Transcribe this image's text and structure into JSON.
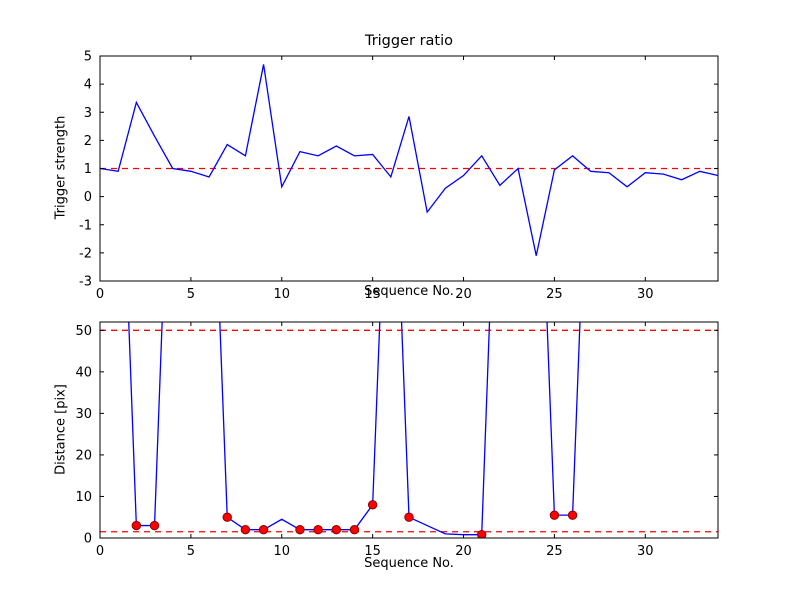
{
  "figure": {
    "background": "#ffffff",
    "line_color": "#0000ff",
    "dashed_color": "#ff0000",
    "marker_face": "#ff0000",
    "marker_edge": "#8b0000",
    "axis_color": "#000000"
  },
  "chart_data": [
    {
      "type": "line",
      "title": "Trigger ratio",
      "xlabel": "Sequence No.",
      "ylabel": "Trigger strength",
      "xlim": [
        0,
        34
      ],
      "ylim": [
        -3,
        5
      ],
      "xticks": [
        0,
        5,
        10,
        15,
        20,
        25,
        30
      ],
      "yticks": [
        -3,
        -2,
        -1,
        0,
        1,
        2,
        3,
        4,
        5
      ],
      "grid": false,
      "legend": null,
      "hlines": [
        1
      ],
      "x": [
        0,
        1,
        2,
        3,
        4,
        5,
        6,
        7,
        8,
        9,
        10,
        11,
        12,
        13,
        14,
        15,
        16,
        17,
        18,
        19,
        20,
        21,
        22,
        23,
        24,
        25,
        26,
        27,
        28,
        29,
        30,
        31,
        32,
        33,
        34
      ],
      "series": [
        {
          "name": "trigger-strength",
          "values": [
            1.0,
            0.9,
            3.35,
            2.15,
            1.0,
            0.9,
            0.7,
            1.85,
            1.45,
            4.7,
            0.35,
            1.6,
            1.45,
            1.8,
            1.45,
            1.5,
            0.7,
            2.85,
            -0.55,
            0.3,
            0.75,
            1.45,
            0.4,
            1.0,
            -2.1,
            0.95,
            1.45,
            0.9,
            0.85,
            0.35,
            0.85,
            0.8,
            0.6,
            0.9,
            0.75
          ]
        }
      ],
      "markers": []
    },
    {
      "type": "line",
      "title": "",
      "xlabel": "Sequence No.",
      "ylabel": "Distance [pix]",
      "xlim": [
        0,
        34
      ],
      "ylim": [
        0,
        52
      ],
      "xticks": [
        0,
        5,
        10,
        15,
        20,
        25,
        30
      ],
      "yticks": [
        0,
        10,
        20,
        30,
        40,
        50
      ],
      "grid": false,
      "legend": null,
      "hlines": [
        50,
        1.5
      ],
      "x": [
        0,
        1,
        2,
        3,
        4,
        5,
        6,
        7,
        8,
        9,
        10,
        11,
        12,
        13,
        14,
        15,
        16,
        17,
        18,
        19,
        20,
        21,
        22,
        23,
        24,
        25,
        26,
        27,
        28,
        29,
        30,
        31,
        32,
        33,
        34
      ],
      "series": [
        {
          "name": "distance-pix",
          "values": [
            120,
            120,
            3,
            3,
            120,
            120,
            120,
            5,
            2,
            2,
            4.5,
            2,
            2,
            2,
            2,
            8,
            120,
            5,
            3,
            1,
            0.8,
            0.8,
            120,
            120,
            120,
            5.5,
            5.5,
            120,
            120,
            120,
            120,
            120,
            120,
            120,
            120
          ]
        }
      ],
      "markers": [
        {
          "x": 2,
          "y": 3
        },
        {
          "x": 3,
          "y": 3
        },
        {
          "x": 7,
          "y": 5
        },
        {
          "x": 8,
          "y": 2
        },
        {
          "x": 9,
          "y": 2
        },
        {
          "x": 11,
          "y": 2
        },
        {
          "x": 12,
          "y": 2
        },
        {
          "x": 13,
          "y": 2
        },
        {
          "x": 14,
          "y": 2
        },
        {
          "x": 15,
          "y": 8
        },
        {
          "x": 17,
          "y": 5
        },
        {
          "x": 21,
          "y": 0.8
        },
        {
          "x": 25,
          "y": 5.5
        },
        {
          "x": 26,
          "y": 5.5
        }
      ]
    }
  ]
}
